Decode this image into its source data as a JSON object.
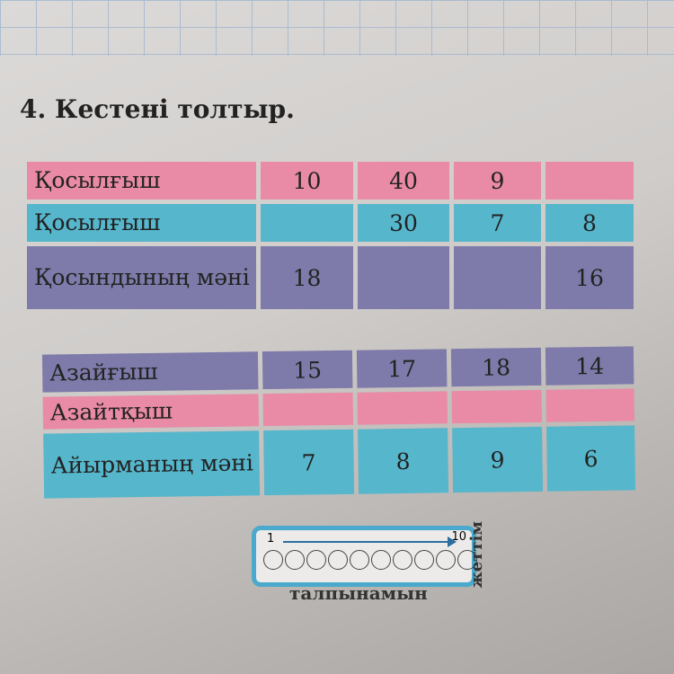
{
  "task_title": "4. Кестені толтыр.",
  "table1": {
    "rows": [
      {
        "label": "Қосылғыш",
        "color": "#e98aa6",
        "cells": [
          "10",
          "40",
          "9",
          ""
        ]
      },
      {
        "label": "Қосылғыш",
        "color": "#56b6cc",
        "cells": [
          "",
          "30",
          "7",
          "8"
        ]
      },
      {
        "label": "Қосындының мәні",
        "color": "#7e7aa9",
        "cells": [
          "18",
          "",
          "",
          "16"
        ]
      }
    ]
  },
  "table2": {
    "rows": [
      {
        "label": "Азайғыш",
        "color": "#7e7aa9",
        "cells": [
          "15",
          "17",
          "18",
          "14"
        ]
      },
      {
        "label": "Азайтқыш",
        "color": "#e98aa6",
        "cells": [
          "",
          "",
          "",
          ""
        ]
      },
      {
        "label": "Айырманың мәні",
        "color": "#56b6cc",
        "cells": [
          "7",
          "8",
          "9",
          "6"
        ]
      }
    ]
  },
  "self_assessment": {
    "start": "1",
    "end": "10",
    "circles": 10,
    "side_label": "жеттім",
    "bottom_label": "талпынамын"
  }
}
